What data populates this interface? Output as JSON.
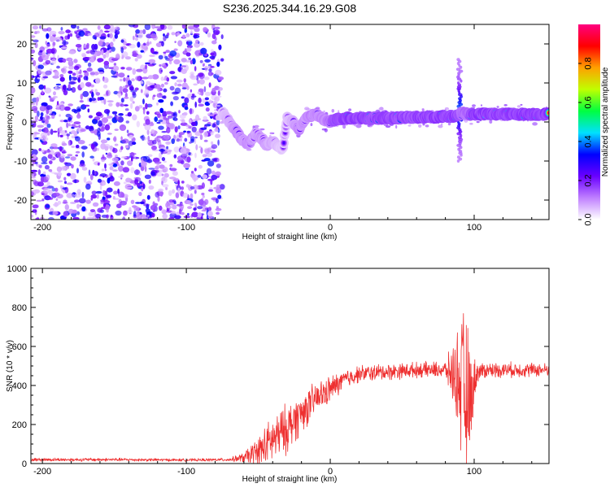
{
  "title": "S236.2025.344.16.29.G08",
  "chart_data": [
    {
      "type": "heatmap",
      "xlabel": "Height of straight line (km)",
      "ylabel": "Frequency (Hz)",
      "xlim": [
        -208,
        152
      ],
      "ylim": [
        -25,
        25
      ],
      "xticks": [
        -200,
        -100,
        0,
        100
      ],
      "yticks": [
        20,
        10,
        0,
        -10,
        -20
      ],
      "noise_region_x": [
        -208,
        -75
      ],
      "ridge": {
        "x": [
          -75,
          -72,
          -68,
          -64,
          -60,
          -56,
          -52,
          -48,
          -44,
          -40,
          -36,
          -33,
          -30,
          -26,
          -22,
          -18,
          -14,
          -10,
          -6,
          -2,
          2,
          10,
          20,
          40,
          60,
          80,
          88,
          92,
          96,
          100,
          120,
          152
        ],
        "freq": [
          2.5,
          1.0,
          -1.0,
          -3.0,
          -5.0,
          -5.5,
          -3.0,
          -4.0,
          -6.0,
          -5.0,
          -6.5,
          -7.0,
          1.0,
          0.0,
          -2.0,
          0.5,
          1.5,
          2.0,
          1.0,
          0.0,
          0.5,
          1.0,
          1.0,
          1.0,
          1.2,
          1.3,
          1.5,
          2.5,
          2.0,
          2.0,
          2.0,
          2.0
        ],
        "amp": [
          0.25,
          0.35,
          0.45,
          0.55,
          0.5,
          0.55,
          0.45,
          0.5,
          0.45,
          0.4,
          0.3,
          0.25,
          0.3,
          0.4,
          0.6,
          0.5,
          0.6,
          0.55,
          0.6,
          0.6,
          0.8,
          0.95,
          0.95,
          0.9,
          0.9,
          0.95,
          0.9,
          0.7,
          0.8,
          0.95,
          0.95,
          0.95
        ]
      },
      "spike": {
        "x": 90,
        "freq_range": [
          -10,
          16
        ]
      },
      "colorbar": {
        "label": "Normalized spectral amplitude",
        "ticks": [
          0.0,
          0.2,
          0.4,
          0.6,
          0.8
        ],
        "range": [
          0,
          1
        ],
        "colors": [
          "#ffffff",
          "#c080ff",
          "#6a00ff",
          "#0000ff",
          "#00e0ff",
          "#00ff40",
          "#c0ff00",
          "#ffa000",
          "#ff0000",
          "#ff0080"
        ]
      }
    },
    {
      "type": "line",
      "xlabel": "Height of straight line (km)",
      "ylabel": "SNR (10 * v/v)",
      "xlim": [
        -208,
        152
      ],
      "ylim": [
        0,
        1000
      ],
      "xticks": [
        -200,
        -100,
        0,
        100
      ],
      "yticks": [
        0,
        200,
        400,
        600,
        800,
        1000
      ],
      "color": "#ee3030",
      "envelope": {
        "x": [
          -208,
          -150,
          -100,
          -70,
          -60,
          -50,
          -40,
          -30,
          -20,
          -10,
          0,
          10,
          20,
          40,
          60,
          80,
          88,
          92,
          95,
          98,
          102,
          110,
          130,
          152
        ],
        "base": [
          20,
          20,
          18,
          20,
          30,
          60,
          120,
          180,
          260,
          330,
          380,
          430,
          460,
          470,
          480,
          480,
          450,
          380,
          300,
          350,
          470,
          480,
          480,
          480
        ],
        "amp": [
          10,
          10,
          8,
          10,
          30,
          100,
          140,
          150,
          120,
          100,
          80,
          60,
          50,
          50,
          45,
          50,
          250,
          500,
          500,
          250,
          60,
          45,
          45,
          40
        ]
      }
    }
  ]
}
